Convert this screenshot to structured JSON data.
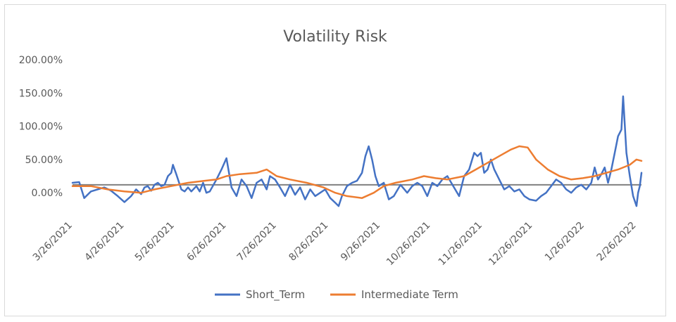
{
  "chart_data": {
    "type": "line",
    "title": "Volatility Risk",
    "xlabel": "",
    "ylabel": "",
    "x_tick_labels": [
      "3/26/2021",
      "4/26/2021",
      "5/26/2021",
      "6/26/2021",
      "7/26/2021",
      "8/26/2021",
      "9/26/2021",
      "10/26/2021",
      "11/26/2021",
      "12/26/2021",
      "1/26/2022",
      "2/26/2022"
    ],
    "y_tick_labels": [
      "0.00%",
      "50.00%",
      "100.00%",
      "150.00%",
      "200.00%"
    ],
    "ylim": [
      -40,
      200
    ],
    "xlim": [
      "3/26/2021",
      "3/1/2022"
    ],
    "grid": "off",
    "legend_position": "bottom",
    "reference_line": {
      "value": 12,
      "color": "#7f7f7f"
    },
    "series": [
      {
        "name": "Short_Term",
        "color": "#4472c4",
        "points": [
          [
            "3/26/2021",
            15
          ],
          [
            "3/30/2021",
            16
          ],
          [
            "4/2/2021",
            -8
          ],
          [
            "4/6/2021",
            2
          ],
          [
            "4/10/2021",
            5
          ],
          [
            "4/14/2021",
            8
          ],
          [
            "4/18/2021",
            3
          ],
          [
            "4/22/2021",
            -5
          ],
          [
            "4/26/2021",
            -14
          ],
          [
            "4/30/2021",
            -5
          ],
          [
            "5/3/2021",
            5
          ],
          [
            "5/6/2021",
            -2
          ],
          [
            "5/8/2021",
            8
          ],
          [
            "5/10/2021",
            10
          ],
          [
            "5/12/2021",
            3
          ],
          [
            "5/14/2021",
            12
          ],
          [
            "5/16/2021",
            15
          ],
          [
            "5/18/2021",
            10
          ],
          [
            "5/20/2021",
            12
          ],
          [
            "5/22/2021",
            25
          ],
          [
            "5/24/2021",
            30
          ],
          [
            "5/25/2021",
            42
          ],
          [
            "5/27/2021",
            28
          ],
          [
            "5/30/2021",
            5
          ],
          [
            "6/1/2021",
            2
          ],
          [
            "6/3/2021",
            8
          ],
          [
            "6/5/2021",
            2
          ],
          [
            "6/8/2021",
            10
          ],
          [
            "6/10/2021",
            2
          ],
          [
            "6/12/2021",
            15
          ],
          [
            "6/14/2021",
            0
          ],
          [
            "6/16/2021",
            2
          ],
          [
            "6/20/2021",
            20
          ],
          [
            "6/23/2021",
            35
          ],
          [
            "6/26/2021",
            52
          ],
          [
            "6/29/2021",
            8
          ],
          [
            "7/2/2021",
            -5
          ],
          [
            "7/5/2021",
            20
          ],
          [
            "7/8/2021",
            10
          ],
          [
            "7/11/2021",
            -8
          ],
          [
            "7/14/2021",
            15
          ],
          [
            "7/17/2021",
            20
          ],
          [
            "7/20/2021",
            5
          ],
          [
            "7/22/2021",
            25
          ],
          [
            "7/25/2021",
            20
          ],
          [
            "7/28/2021",
            8
          ],
          [
            "7/31/2021",
            -5
          ],
          [
            "8/3/2021",
            12
          ],
          [
            "8/6/2021",
            -3
          ],
          [
            "8/9/2021",
            8
          ],
          [
            "8/12/2021",
            -10
          ],
          [
            "8/15/2021",
            5
          ],
          [
            "8/18/2021",
            -5
          ],
          [
            "8/21/2021",
            0
          ],
          [
            "8/24/2021",
            5
          ],
          [
            "8/27/2021",
            -8
          ],
          [
            "8/30/2021",
            -15
          ],
          [
            "9/1/2021",
            -20
          ],
          [
            "9/3/2021",
            -5
          ],
          [
            "9/6/2021",
            10
          ],
          [
            "9/9/2021",
            15
          ],
          [
            "9/12/2021",
            18
          ],
          [
            "9/15/2021",
            30
          ],
          [
            "9/17/2021",
            55
          ],
          [
            "9/19/2021",
            70
          ],
          [
            "9/21/2021",
            50
          ],
          [
            "9/23/2021",
            25
          ],
          [
            "9/25/2021",
            10
          ],
          [
            "9/28/2021",
            15
          ],
          [
            "10/1/2021",
            -10
          ],
          [
            "10/4/2021",
            -5
          ],
          [
            "10/8/2021",
            12
          ],
          [
            "10/12/2021",
            0
          ],
          [
            "10/15/2021",
            10
          ],
          [
            "10/18/2021",
            15
          ],
          [
            "10/21/2021",
            10
          ],
          [
            "10/24/2021",
            -5
          ],
          [
            "10/27/2021",
            15
          ],
          [
            "10/30/2021",
            10
          ],
          [
            "11/2/2021",
            20
          ],
          [
            "11/5/2021",
            25
          ],
          [
            "11/8/2021",
            12
          ],
          [
            "11/12/2021",
            -5
          ],
          [
            "11/15/2021",
            25
          ],
          [
            "11/18/2021",
            35
          ],
          [
            "11/21/2021",
            60
          ],
          [
            "11/23/2021",
            55
          ],
          [
            "11/25/2021",
            60
          ],
          [
            "11/27/2021",
            30
          ],
          [
            "11/29/2021",
            35
          ],
          [
            "12/1/2021",
            50
          ],
          [
            "12/3/2021",
            35
          ],
          [
            "12/6/2021",
            20
          ],
          [
            "12/9/2021",
            5
          ],
          [
            "12/12/2021",
            10
          ],
          [
            "12/15/2021",
            2
          ],
          [
            "12/18/2021",
            5
          ],
          [
            "12/21/2021",
            -5
          ],
          [
            "12/24/2021",
            -10
          ],
          [
            "12/28/2021",
            -12
          ],
          [
            "12/31/2021",
            -5
          ],
          [
            "1/3/2022",
            0
          ],
          [
            "1/6/2022",
            10
          ],
          [
            "1/9/2022",
            20
          ],
          [
            "1/12/2022",
            15
          ],
          [
            "1/15/2022",
            5
          ],
          [
            "1/18/2022",
            0
          ],
          [
            "1/21/2022",
            8
          ],
          [
            "1/24/2022",
            12
          ],
          [
            "1/27/2022",
            5
          ],
          [
            "1/30/2022",
            15
          ],
          [
            "2/1/2022",
            38
          ],
          [
            "2/3/2022",
            20
          ],
          [
            "2/5/2022",
            28
          ],
          [
            "2/7/2022",
            38
          ],
          [
            "2/9/2022",
            15
          ],
          [
            "2/11/2022",
            35
          ],
          [
            "2/13/2022",
            60
          ],
          [
            "2/15/2022",
            85
          ],
          [
            "2/17/2022",
            95
          ],
          [
            "2/18/2022",
            145
          ],
          [
            "2/20/2022",
            60
          ],
          [
            "2/22/2022",
            25
          ],
          [
            "2/24/2022",
            -5
          ],
          [
            "2/26/2022",
            -20
          ],
          [
            "2/27/2022",
            0
          ],
          [
            "2/28/2022",
            10
          ],
          [
            "3/1/2022",
            30
          ]
        ]
      },
      {
        "name": "Intermediate Term",
        "color": "#ed7d31",
        "points": [
          [
            "3/26/2021",
            10
          ],
          [
            "4/6/2021",
            10
          ],
          [
            "4/16/2021",
            5
          ],
          [
            "4/26/2021",
            2
          ],
          [
            "5/6/2021",
            0
          ],
          [
            "5/14/2021",
            5
          ],
          [
            "5/24/2021",
            10
          ],
          [
            "6/3/2021",
            15
          ],
          [
            "6/13/2021",
            18
          ],
          [
            "6/20/2021",
            20
          ],
          [
            "6/26/2021",
            25
          ],
          [
            "7/4/2021",
            28
          ],
          [
            "7/14/2021",
            30
          ],
          [
            "7/20/2021",
            35
          ],
          [
            "7/26/2021",
            25
          ],
          [
            "8/3/2021",
            20
          ],
          [
            "8/13/2021",
            15
          ],
          [
            "8/23/2021",
            8
          ],
          [
            "8/30/2021",
            0
          ],
          [
            "9/6/2021",
            -5
          ],
          [
            "9/15/2021",
            -8
          ],
          [
            "9/22/2021",
            0
          ],
          [
            "9/28/2021",
            10
          ],
          [
            "10/5/2021",
            15
          ],
          [
            "10/15/2021",
            20
          ],
          [
            "10/22/2021",
            25
          ],
          [
            "10/29/2021",
            22
          ],
          [
            "11/5/2021",
            20
          ],
          [
            "11/15/2021",
            25
          ],
          [
            "11/22/2021",
            35
          ],
          [
            "11/29/2021",
            45
          ],
          [
            "12/6/2021",
            55
          ],
          [
            "12/13/2021",
            65
          ],
          [
            "12/18/2021",
            70
          ],
          [
            "12/23/2021",
            68
          ],
          [
            "12/28/2021",
            50
          ],
          [
            "1/4/2022",
            35
          ],
          [
            "1/11/2022",
            25
          ],
          [
            "1/18/2022",
            20
          ],
          [
            "1/25/2022",
            22
          ],
          [
            "2/1/2022",
            25
          ],
          [
            "2/8/2022",
            30
          ],
          [
            "2/15/2022",
            35
          ],
          [
            "2/22/2022",
            42
          ],
          [
            "2/26/2022",
            50
          ],
          [
            "3/1/2022",
            48
          ]
        ]
      }
    ]
  }
}
